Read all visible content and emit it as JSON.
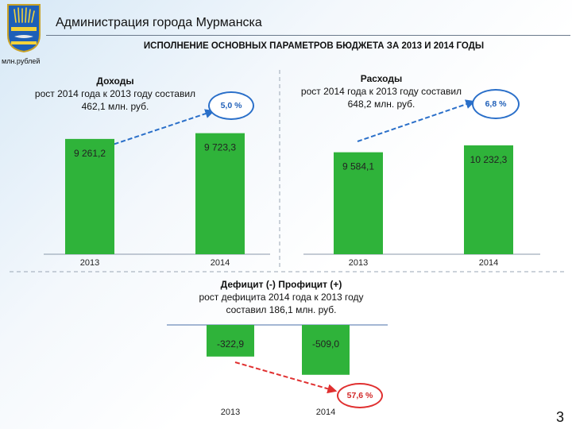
{
  "header": {
    "org_title": "Администрация города Мурманска",
    "subtitle": "ИСПОЛНЕНИЕ ОСНОВНЫХ ПАРАМЕТРОВ БЮДЖЕТА ЗА 2013 И 2014 ГОДЫ",
    "unit": "млн.рублей",
    "logo_icon": "murmansk-coat-of-arms"
  },
  "income": {
    "heading": "Доходы",
    "line1": "рост 2014 года к 2013 году составил",
    "line2": "462,1 млн. руб.",
    "growth": "5,0 %"
  },
  "expense": {
    "heading": "Расходы",
    "line1": "рост 2014 года к 2013 году составил",
    "line2": "648,2 млн. руб.",
    "growth": "6,8 %"
  },
  "deficit": {
    "heading": "Дефицит (-) Профицит (+)",
    "line1": "рост дефицита 2014 года к 2013 году",
    "line2": "составил 186,1 млн. руб.",
    "growth": "57,6 %"
  },
  "page_number": "3",
  "colors": {
    "bar": "#2fb33a",
    "arrow": "#2a6fc9",
    "arrow_red": "#e03030"
  },
  "chart_data": [
    {
      "type": "bar",
      "title": "Доходы",
      "categories": [
        "2013",
        "2014"
      ],
      "values": [
        9261.2,
        9723.3
      ],
      "value_labels": [
        "9 261,2",
        "9 723,3"
      ]
    },
    {
      "type": "bar",
      "title": "Расходы",
      "categories": [
        "2013",
        "2014"
      ],
      "values": [
        9584.1,
        10232.3
      ],
      "value_labels": [
        "9 584,1",
        "10 232,3"
      ]
    },
    {
      "type": "bar",
      "title": "Дефицит (-) Профицит (+)",
      "categories": [
        "2013",
        "2014"
      ],
      "values": [
        -322.9,
        -509.0
      ],
      "value_labels": [
        "-322,9",
        "-509,0"
      ]
    }
  ]
}
